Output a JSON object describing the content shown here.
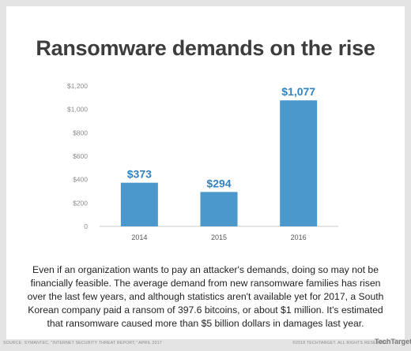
{
  "chart_data": {
    "type": "bar",
    "title": "Ransomware demands on the rise",
    "categories": [
      "2014",
      "2015",
      "2016"
    ],
    "values": [
      373,
      294,
      1077
    ],
    "data_labels": [
      "$373",
      "$294",
      "$1,077"
    ],
    "ylim": [
      0,
      1200
    ],
    "y_ticks": [
      0,
      200,
      400,
      600,
      800,
      1000,
      1200
    ],
    "y_tick_labels": [
      "0",
      "$200",
      "$400",
      "$600",
      "$800",
      "$1,000",
      "$1,200"
    ],
    "xlabel": "",
    "ylabel": "",
    "grid": false,
    "bar_color": "#4b98cc",
    "label_color": "#3282bd"
  },
  "caption": "Even if an organization wants to pay an attacker's demands, doing so may not be financially feasible. The average demand from new ransomware families has risen over the last few years, and although statistics aren't available yet for 2017, a South Korean company paid a ransom of 397.6 bitcoins, or about $1 million. It's estimated that ransomware caused more than $5 billion dollars in damages last year.",
  "source": "SOURCE: SYMANTEC, \"INTERNET SECURITY THREAT REPORT,\" APRIL 2017",
  "copyright": "©2018 TECHTARGET. ALL RIGHTS RESERVED",
  "logo": "TechTarget"
}
